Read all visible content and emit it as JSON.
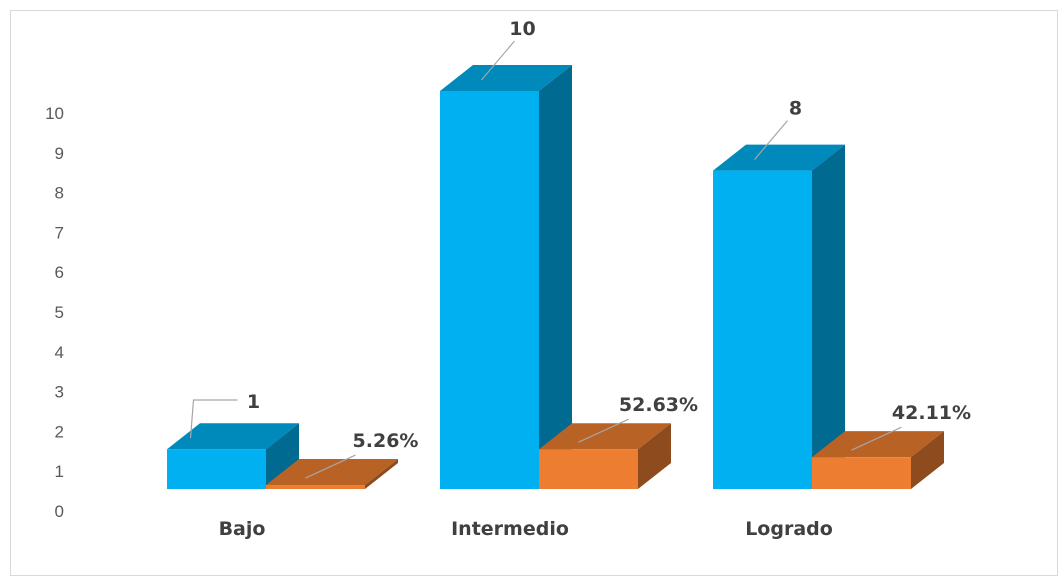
{
  "chart_data": {
    "type": "bar",
    "style": "3d-clustered-column",
    "categories": [
      "Bajo",
      "Intermedio",
      "Logrado"
    ],
    "series": [
      {
        "values": [
          1,
          10,
          8
        ],
        "labels": [
          "1",
          "10",
          "8"
        ],
        "color": "#00b0f0"
      },
      {
        "values": [
          0.0526,
          0.5263,
          0.4211
        ],
        "labels": [
          "5.26%",
          "52.63%",
          "42.11%"
        ],
        "color": "#ed7d31"
      }
    ],
    "y_ticks": [
      "0",
      "1",
      "2",
      "3",
      "4",
      "5",
      "6",
      "7",
      "8",
      "9",
      "10"
    ],
    "ylim": [
      0,
      10
    ],
    "grid": false,
    "legend": "none"
  }
}
